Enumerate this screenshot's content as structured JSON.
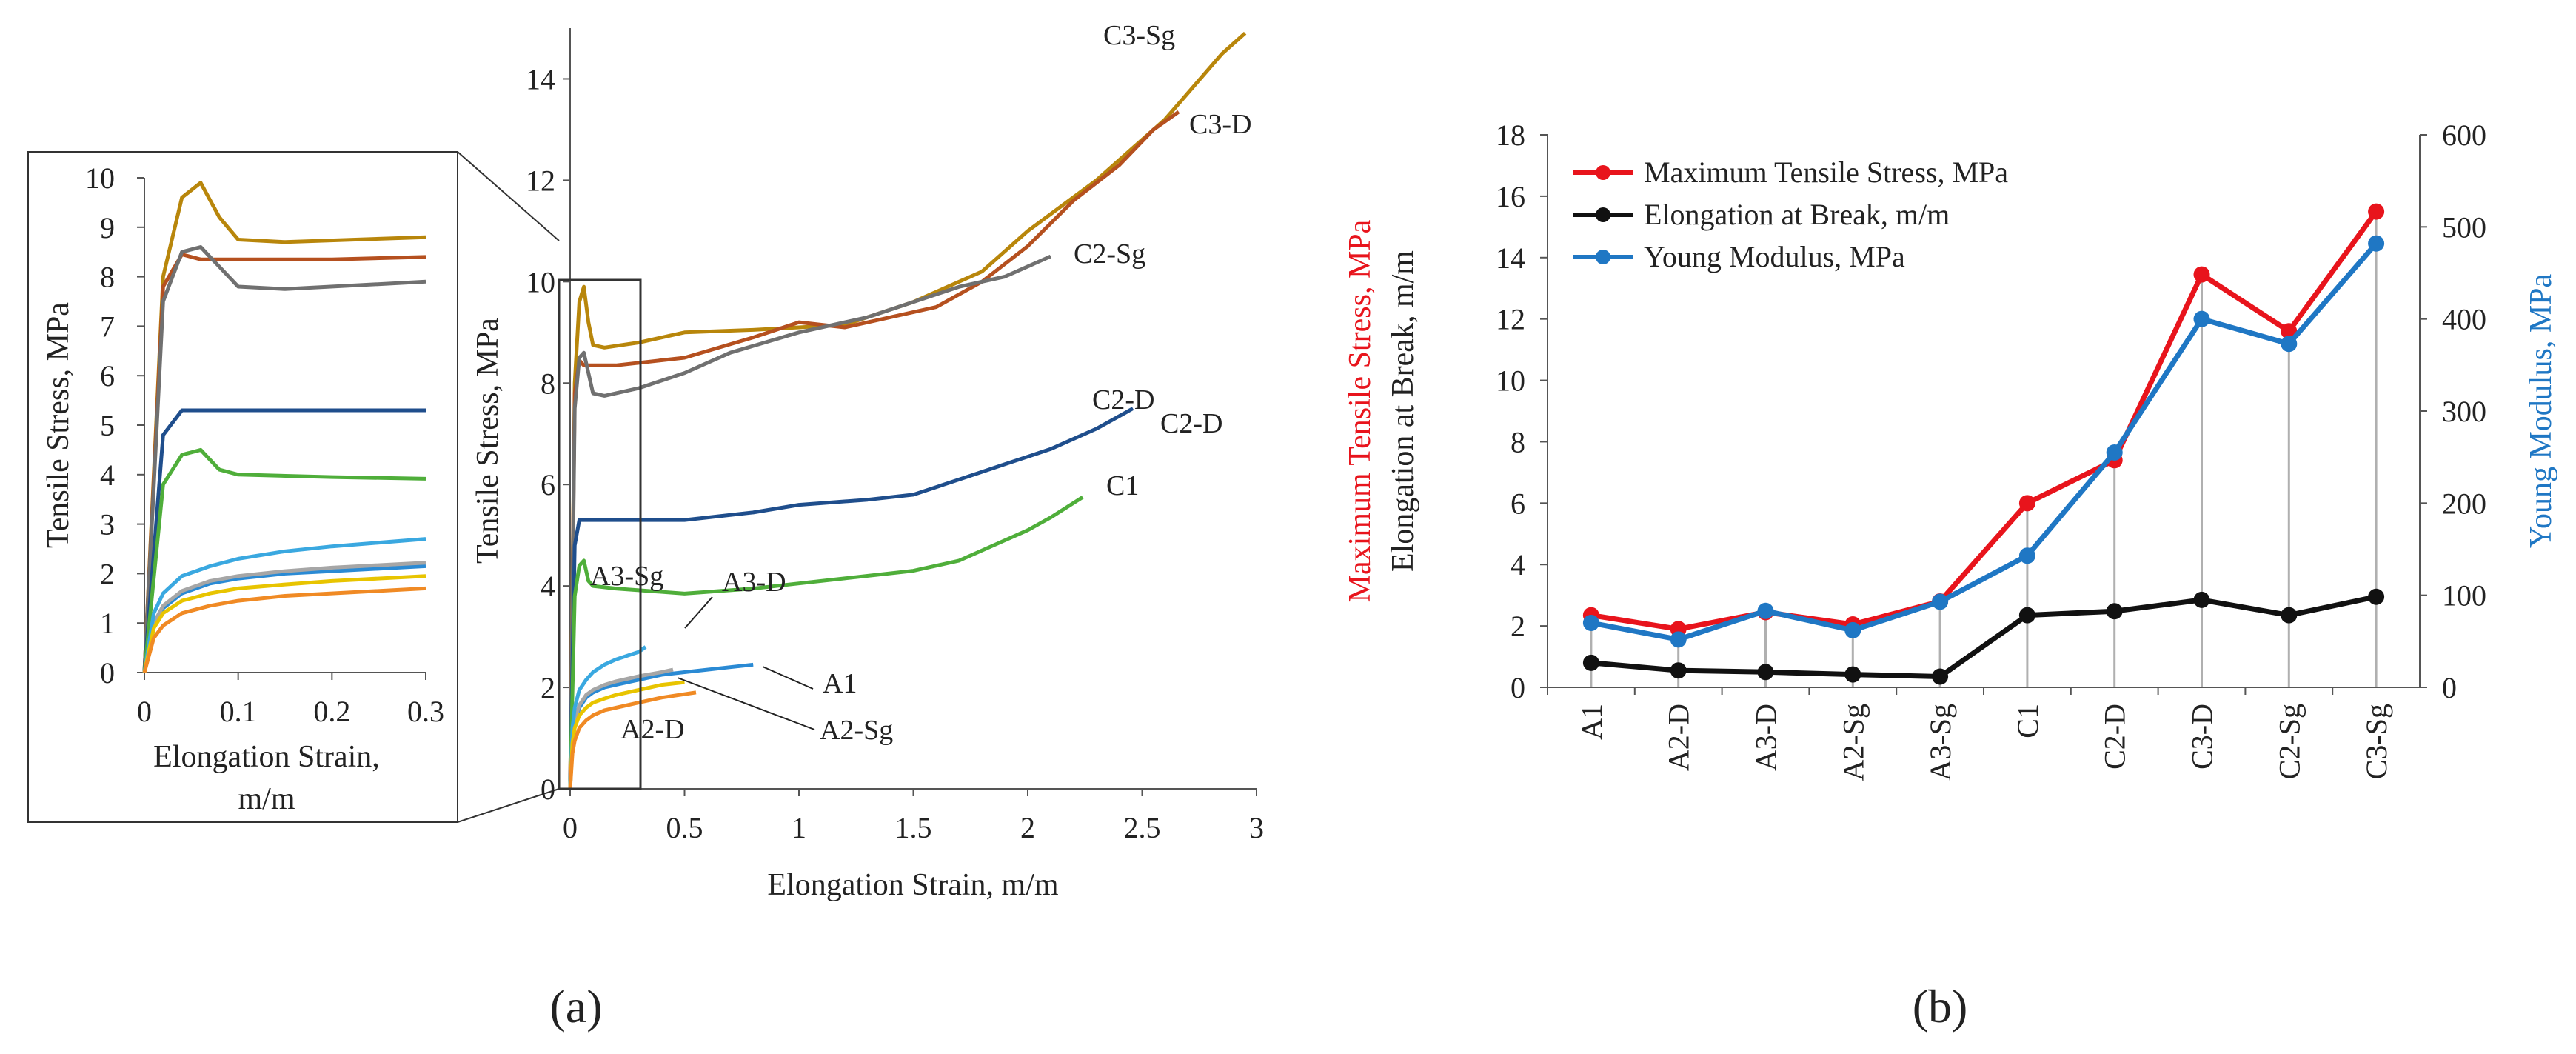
{
  "chart_data": [
    {
      "type": "line",
      "panel_label": "(a)",
      "xlabel": "Elongation Strain, m/m",
      "ylabel": "Tensile Stress, MPa",
      "xlim": [
        0,
        3
      ],
      "ylim": [
        0,
        15
      ],
      "xticks": [
        "0",
        "0.5",
        "1",
        "1.5",
        "2",
        "2.5",
        "3"
      ],
      "yticks": [
        "0",
        "2",
        "4",
        "6",
        "8",
        "10",
        "12",
        "14"
      ],
      "series": [
        {
          "name": "C3-Sg",
          "color": "#b8860b",
          "x": [
            0,
            0.02,
            0.04,
            0.06,
            0.08,
            0.1,
            0.15,
            0.3,
            0.5,
            0.8,
            1.0,
            1.2,
            1.5,
            1.8,
            2.0,
            2.3,
            2.6,
            2.85,
            2.95
          ],
          "y": [
            0,
            8.0,
            9.6,
            9.9,
            9.2,
            8.75,
            8.7,
            8.8,
            9.0,
            9.05,
            9.1,
            9.15,
            9.6,
            10.2,
            11.0,
            12.0,
            13.2,
            14.5,
            14.9
          ]
        },
        {
          "name": "C3-D",
          "color": "#b5501f",
          "x": [
            0,
            0.02,
            0.04,
            0.06,
            0.1,
            0.2,
            0.5,
            0.8,
            1.0,
            1.2,
            1.4,
            1.6,
            1.8,
            2.0,
            2.2,
            2.4,
            2.55,
            2.66
          ],
          "y": [
            0,
            7.8,
            8.45,
            8.35,
            8.35,
            8.35,
            8.5,
            8.9,
            9.2,
            9.1,
            9.3,
            9.5,
            10.0,
            10.7,
            11.6,
            12.3,
            13.0,
            13.35
          ]
        },
        {
          "name": "C2-Sg",
          "color": "#707070",
          "x": [
            0,
            0.02,
            0.04,
            0.06,
            0.08,
            0.1,
            0.15,
            0.3,
            0.5,
            0.7,
            1.0,
            1.3,
            1.5,
            1.7,
            1.9,
            2.0,
            2.1
          ],
          "y": [
            0,
            7.5,
            8.5,
            8.6,
            8.2,
            7.8,
            7.75,
            7.9,
            8.2,
            8.6,
            9.0,
            9.3,
            9.6,
            9.9,
            10.1,
            10.3,
            10.5
          ]
        },
        {
          "name": "C2-D",
          "color": "#1f4e8c",
          "x": [
            0,
            0.02,
            0.04,
            0.1,
            0.3,
            0.5,
            0.8,
            1.0,
            1.3,
            1.5,
            1.7,
            1.9,
            2.1,
            2.3,
            2.46
          ],
          "y": [
            0,
            4.8,
            5.3,
            5.3,
            5.3,
            5.3,
            5.45,
            5.6,
            5.7,
            5.8,
            6.1,
            6.4,
            6.7,
            7.1,
            7.5
          ]
        },
        {
          "name": "C1",
          "color": "#4fae3a",
          "x": [
            0,
            0.02,
            0.04,
            0.06,
            0.08,
            0.1,
            0.2,
            0.5,
            0.8,
            1.0,
            1.2,
            1.5,
            1.7,
            1.9,
            2.0,
            2.1,
            2.24
          ],
          "y": [
            0,
            3.8,
            4.4,
            4.5,
            4.1,
            4.0,
            3.95,
            3.85,
            3.95,
            4.05,
            4.15,
            4.3,
            4.5,
            4.9,
            5.1,
            5.35,
            5.75
          ]
        },
        {
          "name": "A1",
          "color": "#2a8ad4",
          "x": [
            0,
            0.01,
            0.02,
            0.04,
            0.07,
            0.1,
            0.15,
            0.2,
            0.3,
            0.4,
            0.5,
            0.6,
            0.7,
            0.8
          ],
          "y": [
            0,
            0.9,
            1.3,
            1.6,
            1.8,
            1.9,
            2.0,
            2.05,
            2.15,
            2.25,
            2.3,
            2.35,
            2.4,
            2.45
          ]
        },
        {
          "name": "A3-D",
          "color": "#a6a6a6",
          "x": [
            0,
            0.01,
            0.02,
            0.04,
            0.07,
            0.1,
            0.15,
            0.2,
            0.3,
            0.4,
            0.45
          ],
          "y": [
            0,
            1.0,
            1.35,
            1.65,
            1.85,
            1.95,
            2.05,
            2.12,
            2.22,
            2.3,
            2.35
          ]
        },
        {
          "name": "A3-Sg",
          "color": "#3aa8e0",
          "x": [
            0,
            0.01,
            0.02,
            0.04,
            0.07,
            0.1,
            0.15,
            0.2,
            0.3,
            0.33
          ],
          "y": [
            0,
            1.2,
            1.6,
            1.95,
            2.15,
            2.3,
            2.45,
            2.55,
            2.7,
            2.8
          ]
        },
        {
          "name": "A2-Sg",
          "color": "#e8c400",
          "x": [
            0,
            0.01,
            0.02,
            0.04,
            0.07,
            0.1,
            0.15,
            0.2,
            0.3,
            0.4,
            0.5
          ],
          "y": [
            0,
            0.9,
            1.2,
            1.45,
            1.6,
            1.7,
            1.78,
            1.85,
            1.95,
            2.05,
            2.1
          ]
        },
        {
          "name": "A2-D",
          "color": "#f08a24",
          "x": [
            0,
            0.01,
            0.02,
            0.04,
            0.07,
            0.1,
            0.15,
            0.2,
            0.3,
            0.4,
            0.55
          ],
          "y": [
            0,
            0.7,
            0.95,
            1.2,
            1.35,
            1.45,
            1.55,
            1.6,
            1.7,
            1.8,
            1.9
          ]
        }
      ],
      "annotations": [
        "C3-Sg",
        "C3-D",
        "C2-Sg",
        "C2-D",
        "C2-D",
        "C1",
        "A3-Sg",
        "A3-D",
        "A1",
        "A2-Sg",
        "A2-D"
      ]
    },
    {
      "type": "line",
      "panel_label": "(a) inset",
      "xlabel_line1": "Elongation Strain,",
      "xlabel_line2": "m/m",
      "ylabel": "Tensile Stress, MPa",
      "xlim": [
        0,
        0.3
      ],
      "ylim": [
        0,
        10
      ],
      "xticks": [
        "0",
        "0.1",
        "0.2",
        "0.3"
      ],
      "yticks": [
        "0",
        "1",
        "2",
        "3",
        "4",
        "5",
        "6",
        "7",
        "8",
        "9",
        "10"
      ],
      "note": "zoom of first 0.3 m/m of panel (a) curves"
    },
    {
      "type": "line",
      "panel_label": "(b)",
      "categories": [
        "A1",
        "A2-D",
        "A3-D",
        "A2-Sg",
        "A3-Sg",
        "C1",
        "C2-D",
        "C3-D",
        "C2-Sg",
        "C3-Sg"
      ],
      "ylabel_left_red": "Maximum  Tensile Stress, MPa",
      "ylabel_left_black": "Elongation at Break, m/m",
      "ylabel_right": "Young Modulus,  MPa",
      "ylim_left": [
        0,
        18
      ],
      "ylim_right": [
        0,
        600
      ],
      "yticks_left": [
        "0",
        "2",
        "4",
        "6",
        "8",
        "10",
        "12",
        "14",
        "16",
        "18"
      ],
      "yticks_right": [
        "0",
        "100",
        "200",
        "300",
        "400",
        "500",
        "600"
      ],
      "series": [
        {
          "name": "Maximum Tensile Stress, MPa",
          "axis": "left",
          "color": "#e8141c",
          "values": [
            2.35,
            1.9,
            2.45,
            2.05,
            2.8,
            6.0,
            7.4,
            13.45,
            11.6,
            15.5
          ]
        },
        {
          "name": "Elongation at Break, m/m",
          "axis": "left",
          "color": "#111111",
          "values": [
            0.8,
            0.55,
            0.5,
            0.42,
            0.35,
            2.35,
            2.48,
            2.85,
            2.35,
            2.95
          ]
        },
        {
          "name": "Young Modulus, MPa",
          "axis": "right",
          "color": "#1f77c4",
          "values": [
            70,
            52,
            83,
            62,
            93,
            143,
            255,
            400,
            373,
            482
          ]
        }
      ]
    }
  ]
}
